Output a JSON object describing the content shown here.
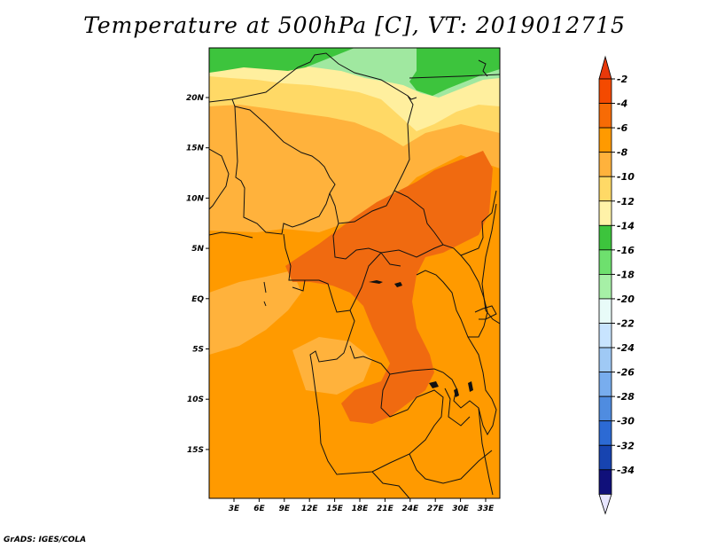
{
  "title": "Temperature at 500hPa [C], VT: 2019012715",
  "credit": "GrADS: IGES/COLA",
  "map": {
    "x_ticks": [
      "3E",
      "6E",
      "9E",
      "12E",
      "15E",
      "18E",
      "21E",
      "24E",
      "27E",
      "30E",
      "33E"
    ],
    "y_ticks": [
      "20N",
      "15N",
      "10N",
      "5N",
      "EQ",
      "5S",
      "10S",
      "15S"
    ],
    "background_color": "#ff9a00",
    "region_colors": {
      "green": "#3dc43d",
      "light_green": "#a0e8a0",
      "pale_yellow": "#ffef9e",
      "yellow": "#ffd966",
      "light_orange": "#ffb23c",
      "orange": "#ff9a00",
      "dark_orange": "#f06a10"
    }
  },
  "colorbar": {
    "labels": [
      "-2",
      "-4",
      "-6",
      "-8",
      "-10",
      "-12",
      "-14",
      "-16",
      "-18",
      "-20",
      "-22",
      "-24",
      "-26",
      "-28",
      "-30",
      "-32",
      "-34"
    ],
    "colors": [
      "#f44a00",
      "#f76b05",
      "#ff9a00",
      "#ffb23c",
      "#ffd966",
      "#fff2a8",
      "#3dc43d",
      "#6ee06e",
      "#a6f0a6",
      "#e8fbf8",
      "#c8e4ff",
      "#9fc9f5",
      "#78adee",
      "#4f8ce0",
      "#2c6ad4",
      "#1744b0",
      "#10107a"
    ],
    "top_arrow_color": "#e8380a",
    "bottom_arrow_color": "#e8e6ff"
  }
}
